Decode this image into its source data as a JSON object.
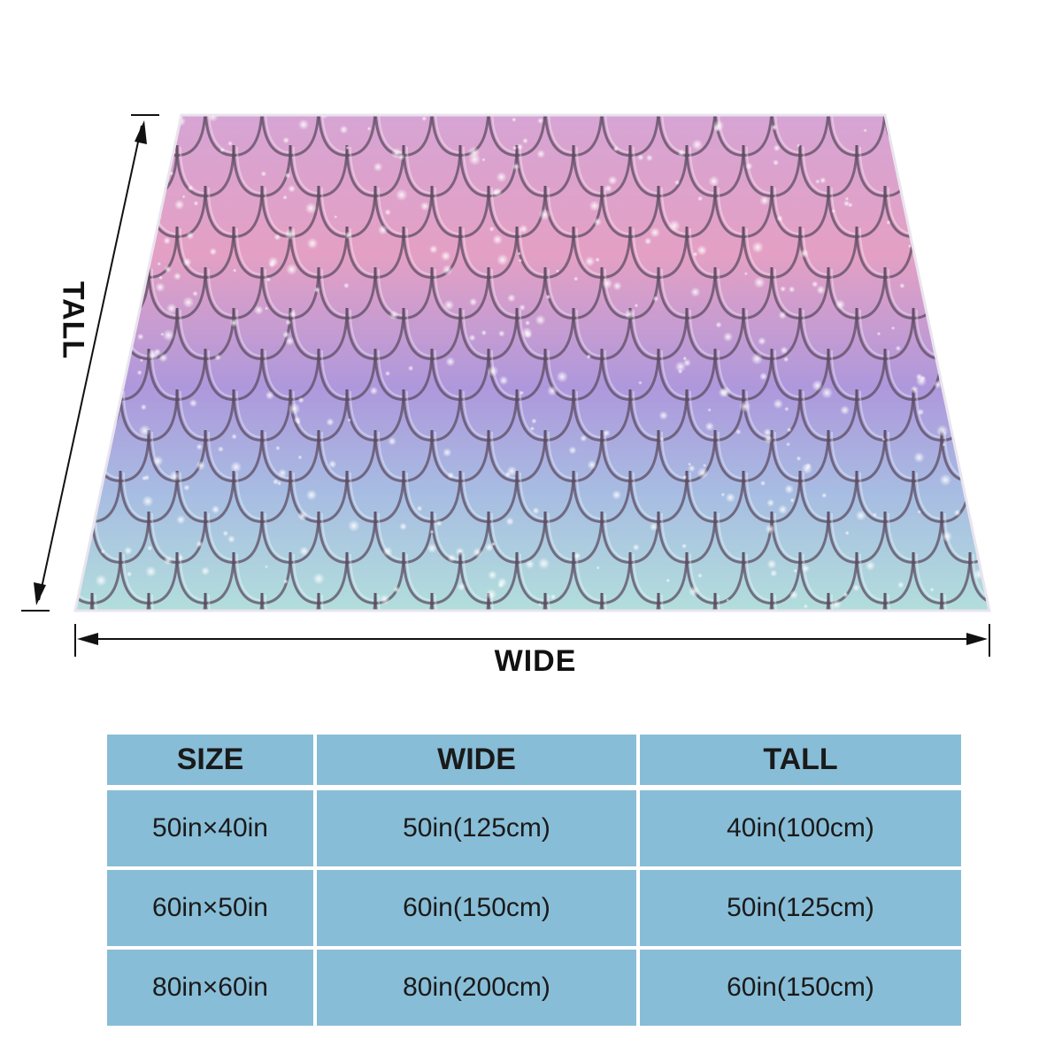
{
  "colors": {
    "table_cell": "#88BDD7",
    "gradient_top": "#D6A4D4",
    "gradient_pink": "#E4A0C4",
    "gradient_purple": "#AE98DC",
    "gradient_blue": "#A7BCE2",
    "gradient_teal": "#B2DEDC",
    "scale_outline": "#5C4C62"
  },
  "diagram": {
    "wide_label": "WIDE",
    "tall_label": "TALL"
  },
  "size_table": {
    "headers": [
      "SIZE",
      "WIDE",
      "TALL"
    ],
    "rows": [
      [
        "50in×40in",
        "50in(125cm)",
        "40in(100cm)"
      ],
      [
        "60in×50in",
        "60in(150cm)",
        "50in(125cm)"
      ],
      [
        "80in×60in",
        "80in(200cm)",
        "60in(150cm)"
      ]
    ]
  }
}
